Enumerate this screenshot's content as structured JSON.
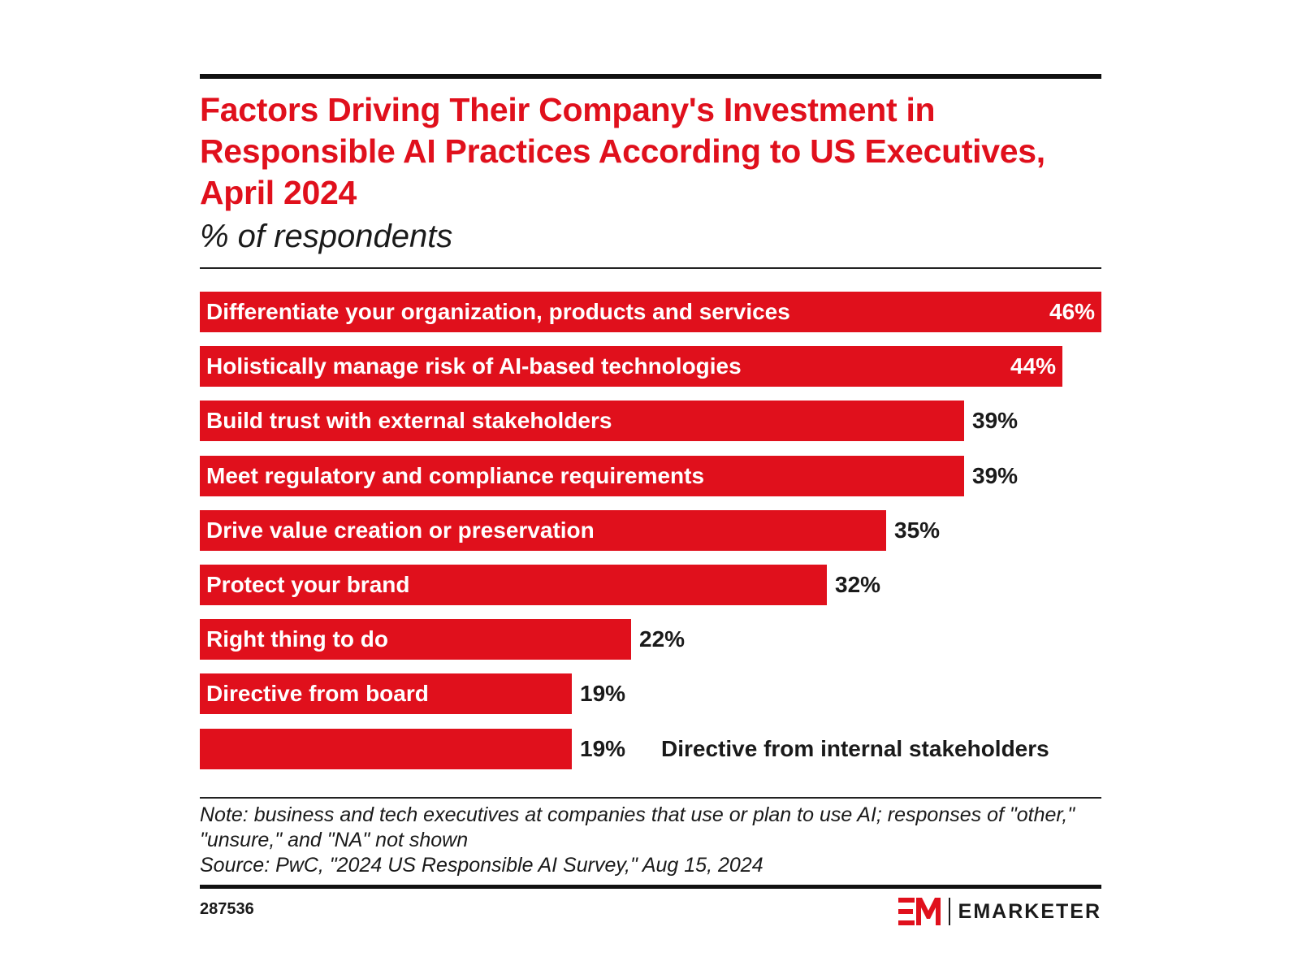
{
  "chart_data": {
    "type": "bar",
    "orientation": "horizontal",
    "title": "Factors Driving Their Company's Investment in Responsible AI Practices According to US Executives, April 2024",
    "subtitle": "% of respondents",
    "categories": [
      "Differentiate your organization, products and services",
      "Holistically manage risk of AI-based technologies",
      "Build trust with external stakeholders",
      "Meet regulatory and compliance requirements",
      "Drive value creation or preservation",
      "Protect your brand",
      "Right thing to do",
      "Directive from board",
      "Directive from internal stakeholders"
    ],
    "values": [
      46,
      44,
      39,
      39,
      35,
      32,
      22,
      19,
      19
    ],
    "value_labels": [
      "46%",
      "44%",
      "39%",
      "39%",
      "35%",
      "32%",
      "22%",
      "19%",
      "19%"
    ],
    "unit": "%",
    "xlim": [
      0,
      46
    ],
    "bar_color": "#e0101c"
  },
  "footer": {
    "note": "Note: business and tech executives at companies that use or plan to use AI; responses of \"other,\" \"unsure,\" and \"NA\" not shown",
    "source": "Source: PwC, \"2024 US Responsible AI Survey,\" Aug 15, 2024",
    "chart_id": "287536",
    "brand": "EMARKETER",
    "logo_icon": "em-logo-icon"
  }
}
